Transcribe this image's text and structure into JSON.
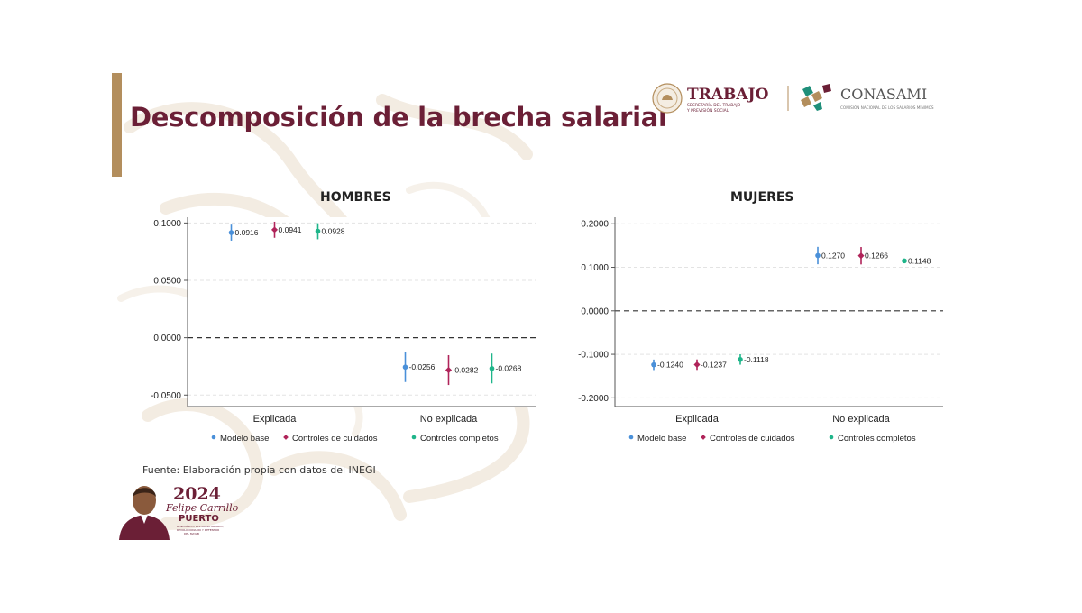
{
  "slide": {
    "title": "Descomposición de la brecha salarial",
    "source": "Fuente: Elaboración propia con datos del INEGI"
  },
  "logos": {
    "trabajo": "TRABAJO",
    "trabajo_sub_1": "SECRETARÍA DEL TRABAJO",
    "trabajo_sub_2": "Y PREVISIÓN SOCIAL",
    "conasami": "CONASAMI",
    "conasami_sub": "COMISIÓN NACIONAL DE LOS SALARIOS MÍNIMOS"
  },
  "anniversary": {
    "year": "2024",
    "name": "Felipe Carrillo",
    "place": "PUERTO",
    "tagline_1": "BENEMÉRITO DEL PROLETARIADO,",
    "tagline_2": "REVOLUCIONARIO Y DEFENSOR",
    "tagline_3": "DEL MAYAB"
  },
  "colors": {
    "brand": "#6b1f36",
    "accent": "#b38e5d",
    "modelo_base": "#4a90d9",
    "controles_cuidados": "#b0245a",
    "controles_completos": "#1fb58a"
  },
  "chart_data": [
    {
      "type": "scatter",
      "title": "HOMBRES",
      "categories": [
        "Explicada",
        "No explicada"
      ],
      "ylim": [
        -0.06,
        0.105
      ],
      "yticks": [
        0.1,
        0.05,
        0.0,
        -0.05
      ],
      "ytick_labels": [
        "0.1000",
        "0.0500",
        "0.0000",
        "-0.0500"
      ],
      "reference_line": 0,
      "grid": true,
      "legend_position": "bottom",
      "series": [
        {
          "name": "Modelo base",
          "values": [
            0.0916,
            -0.0256
          ],
          "ci_low": [
            0.0846,
            -0.0386
          ],
          "ci_high": [
            0.0986,
            -0.0126
          ],
          "labels": [
            "0.0916",
            "-0.0256"
          ]
        },
        {
          "name": "Controles de cuidados",
          "values": [
            0.0941,
            -0.0282
          ],
          "ci_low": [
            0.0871,
            -0.0412
          ],
          "ci_high": [
            0.1011,
            -0.0152
          ],
          "labels": [
            "0.0941",
            "-0.0282"
          ]
        },
        {
          "name": "Controles completos",
          "values": [
            0.0928,
            -0.0268
          ],
          "ci_low": [
            0.0858,
            -0.0398
          ],
          "ci_high": [
            0.0998,
            -0.0138
          ],
          "labels": [
            "0.0928",
            "-0.0268"
          ]
        }
      ]
    },
    {
      "type": "scatter",
      "title": "MUJERES",
      "categories": [
        "Explicada",
        "No explicada"
      ],
      "ylim": [
        -0.22,
        0.215
      ],
      "yticks": [
        0.2,
        0.1,
        0.0,
        -0.1,
        -0.2
      ],
      "ytick_labels": [
        "0.2000",
        "0.1000",
        "0.0000",
        "-0.1000",
        "-0.2000"
      ],
      "reference_line": 0,
      "grid": true,
      "legend_position": "bottom",
      "series": [
        {
          "name": "Modelo base",
          "values": [
            -0.124,
            0.127
          ],
          "ci_low": [
            -0.136,
            0.107
          ],
          "ci_high": [
            -0.112,
            0.147
          ],
          "labels": [
            "-0.1240",
            "0.1270"
          ]
        },
        {
          "name": "Controles de cuidados",
          "values": [
            -0.1237,
            0.1266
          ],
          "ci_low": [
            -0.1357,
            0.1066
          ],
          "ci_high": [
            -0.1117,
            0.1466
          ],
          "labels": [
            "-0.1237",
            "0.1266"
          ]
        },
        {
          "name": "Controles completos",
          "values": [
            -0.1118,
            0.1148
          ],
          "ci_low": [
            -0.1238,
            0.1098
          ],
          "ci_high": [
            -0.0998,
            0.1198
          ],
          "labels": [
            "-0.1118",
            "0.1148"
          ]
        }
      ]
    }
  ]
}
